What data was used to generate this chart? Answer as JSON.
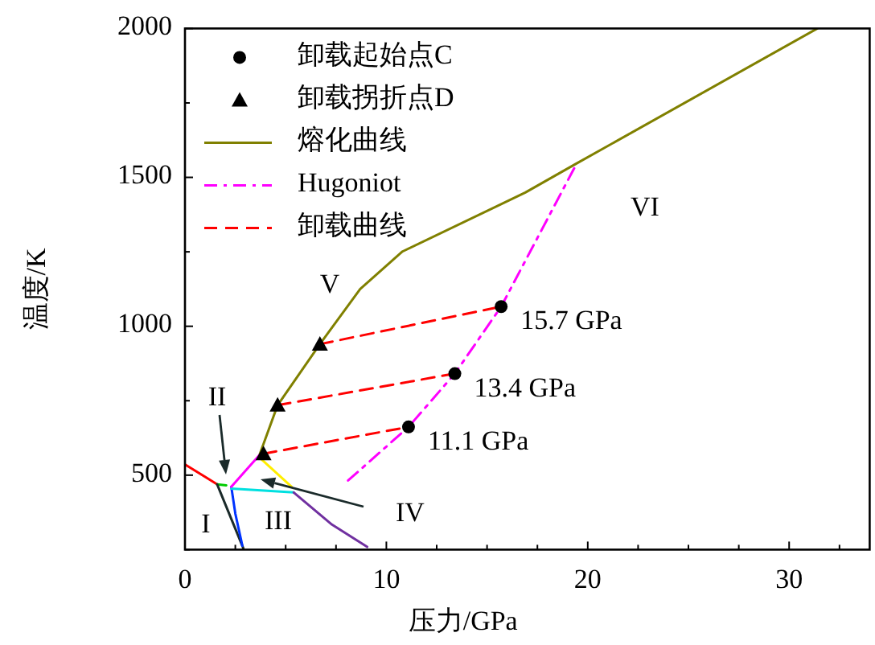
{
  "chart_data": {
    "type": "line",
    "xlabel": "压力/GPa",
    "ylabel": "温度/K",
    "xlim": [
      0,
      34
    ],
    "ylim": [
      250,
      2000
    ],
    "xticks": [
      0,
      {
        "value": 2.5,
        "label": null
      },
      {
        "value": 5,
        "label": null
      },
      {
        "value": 7.5,
        "label": null
      },
      10,
      {
        "value": 12.5,
        "label": null
      },
      {
        "value": 15,
        "label": null
      },
      {
        "value": 17.5,
        "label": null
      },
      20,
      {
        "value": 22.5,
        "label": null
      },
      {
        "value": 25,
        "label": null
      },
      {
        "value": 27.5,
        "label": null
      },
      30,
      {
        "value": 32.5,
        "label": null
      }
    ],
    "yticks": [
      {
        "value": 250,
        "label": null
      },
      500,
      {
        "value": 750,
        "label": null
      },
      1000,
      {
        "value": 1250,
        "label": null
      },
      1500,
      {
        "value": 1750,
        "label": null
      },
      2000
    ],
    "legend": "top left",
    "grid": false,
    "series": [
      {
        "name": "卸载起始点C",
        "type": "scatter",
        "marker": "circle",
        "color": "#000000",
        "x": [
          11.1,
          13.4,
          15.7
        ],
        "values": [
          662,
          841,
          1066
        ]
      },
      {
        "name": "卸载拐折点D",
        "type": "scatter",
        "marker": "triangle",
        "color": "#000000",
        "x": [
          3.9,
          4.6,
          6.7
        ],
        "values": [
          572,
          735,
          940
        ]
      },
      {
        "name": "熔化曲线",
        "line_style": "solid",
        "color": "#808000",
        "x": [
          3.7,
          4.6,
          6.7,
          8.7,
          10.8,
          16.9,
          19.4,
          31.4
        ],
        "values": [
          568,
          735,
          940,
          1125,
          1251,
          1449,
          1545,
          2000
        ]
      },
      {
        "name": "Hugoniot",
        "line_style": "dashdot",
        "color": "#ff00ff",
        "x": [
          8.1,
          11.1,
          13.4,
          15.7,
          19.4
        ],
        "values": [
          482,
          662,
          841,
          1066,
          1540
        ]
      },
      {
        "name": "卸载曲线",
        "line_style": "dashed",
        "color": "#ff0000",
        "x": [
          3.9,
          11.1,
          null,
          4.6,
          13.4,
          null,
          6.7,
          15.7
        ],
        "values": [
          572,
          662,
          null,
          735,
          841,
          null,
          940,
          1066
        ]
      },
      {
        "type": "line",
        "line_style": "solid",
        "color": "#ff0000",
        "x": [
          0,
          1.6
        ],
        "values": [
          536,
          469
        ]
      },
      {
        "type": "line",
        "line_style": "solid",
        "color": "#00cc00",
        "x": [
          1.6,
          2.05
        ],
        "values": [
          469,
          466
        ]
      },
      {
        "type": "line",
        "line_style": "solid",
        "color": "#1a2a2a",
        "x": [
          1.6,
          2.9
        ],
        "values": [
          469,
          254
        ]
      },
      {
        "type": "line",
        "line_style": "solid",
        "color": "#0033ff",
        "x": [
          2.3,
          2.5,
          2.85
        ],
        "values": [
          461,
          371,
          263
        ]
      },
      {
        "type": "line",
        "line_style": "solid",
        "color": "#00e0e0",
        "x": [
          2.3,
          5.4
        ],
        "values": [
          455,
          442
        ]
      },
      {
        "type": "line",
        "line_style": "solid",
        "color": "#ff00ff",
        "x": [
          2.3,
          3.7
        ],
        "values": [
          461,
          568
        ]
      },
      {
        "type": "line",
        "line_style": "solid",
        "color": "#ffee00",
        "x": [
          3.7,
          5.3
        ],
        "values": [
          559,
          461
        ]
      },
      {
        "type": "line",
        "line_style": "solid",
        "color": "#7030a0",
        "x": [
          5.4,
          7.3,
          9.05
        ],
        "values": [
          442,
          334,
          259
        ]
      }
    ],
    "annotations": [
      "I",
      "II",
      "III",
      "IV",
      "V",
      "VI",
      {
        "text": "15.7 GPa",
        "x": 15.7,
        "y": 1066
      },
      {
        "text": "13.4 GPa",
        "x": 13.4,
        "y": 841
      },
      {
        "text": "11.1 GPa",
        "x": 11.1,
        "y": 662
      }
    ]
  }
}
